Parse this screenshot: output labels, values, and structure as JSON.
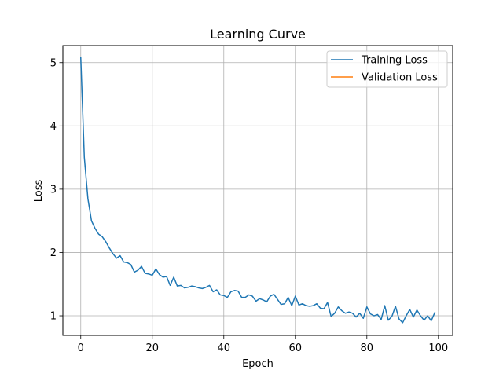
{
  "chart_data": {
    "type": "line",
    "title": "Learning Curve",
    "xlabel": "Epoch",
    "ylabel": "Loss",
    "xlim": [
      -5,
      104
    ],
    "ylim": [
      0.69,
      5.27
    ],
    "xticks": [
      0,
      20,
      40,
      60,
      80,
      100
    ],
    "yticks": [
      1,
      2,
      3,
      4,
      5
    ],
    "grid": true,
    "legend": "top-right",
    "series": [
      {
        "name": "Training Loss",
        "color": "#1f77b4",
        "x": [
          0,
          1,
          2,
          3,
          4,
          5,
          6,
          7,
          8,
          9,
          10,
          11,
          12,
          13,
          14,
          15,
          16,
          17,
          18,
          19,
          20,
          21,
          22,
          23,
          24,
          25,
          26,
          27,
          28,
          29,
          30,
          31,
          32,
          33,
          34,
          35,
          36,
          37,
          38,
          39,
          40,
          41,
          42,
          43,
          44,
          45,
          46,
          47,
          48,
          49,
          50,
          51,
          52,
          53,
          54,
          55,
          56,
          57,
          58,
          59,
          60,
          61,
          62,
          63,
          64,
          65,
          66,
          67,
          68,
          69,
          70,
          71,
          72,
          73,
          74,
          75,
          76,
          77,
          78,
          79,
          80,
          81,
          82,
          83,
          84,
          85,
          86,
          87,
          88,
          89,
          90,
          91,
          92,
          93,
          94,
          95,
          96,
          97,
          98,
          99
        ],
        "values": [
          5.08,
          3.5,
          2.85,
          2.5,
          2.38,
          2.29,
          2.25,
          2.17,
          2.07,
          1.98,
          1.91,
          1.95,
          1.85,
          1.84,
          1.81,
          1.69,
          1.72,
          1.78,
          1.67,
          1.66,
          1.64,
          1.74,
          1.65,
          1.61,
          1.62,
          1.48,
          1.61,
          1.47,
          1.48,
          1.44,
          1.45,
          1.47,
          1.46,
          1.44,
          1.43,
          1.45,
          1.48,
          1.38,
          1.41,
          1.33,
          1.32,
          1.29,
          1.38,
          1.4,
          1.39,
          1.29,
          1.29,
          1.33,
          1.31,
          1.23,
          1.27,
          1.25,
          1.22,
          1.31,
          1.34,
          1.26,
          1.18,
          1.19,
          1.29,
          1.16,
          1.31,
          1.17,
          1.19,
          1.16,
          1.15,
          1.16,
          1.19,
          1.12,
          1.11,
          1.21,
          0.99,
          1.04,
          1.14,
          1.08,
          1.04,
          1.06,
          1.04,
          0.98,
          1.04,
          0.96,
          1.14,
          1.03,
          1.0,
          1.02,
          0.94,
          1.16,
          0.93,
          0.99,
          1.15,
          0.95,
          0.89,
          1.0,
          1.1,
          0.98,
          1.09,
          1.0,
          0.93,
          1.0,
          0.92,
          1.05
        ]
      },
      {
        "name": "Validation Loss",
        "color": "#ff7f0e",
        "x": [],
        "values": []
      }
    ]
  }
}
